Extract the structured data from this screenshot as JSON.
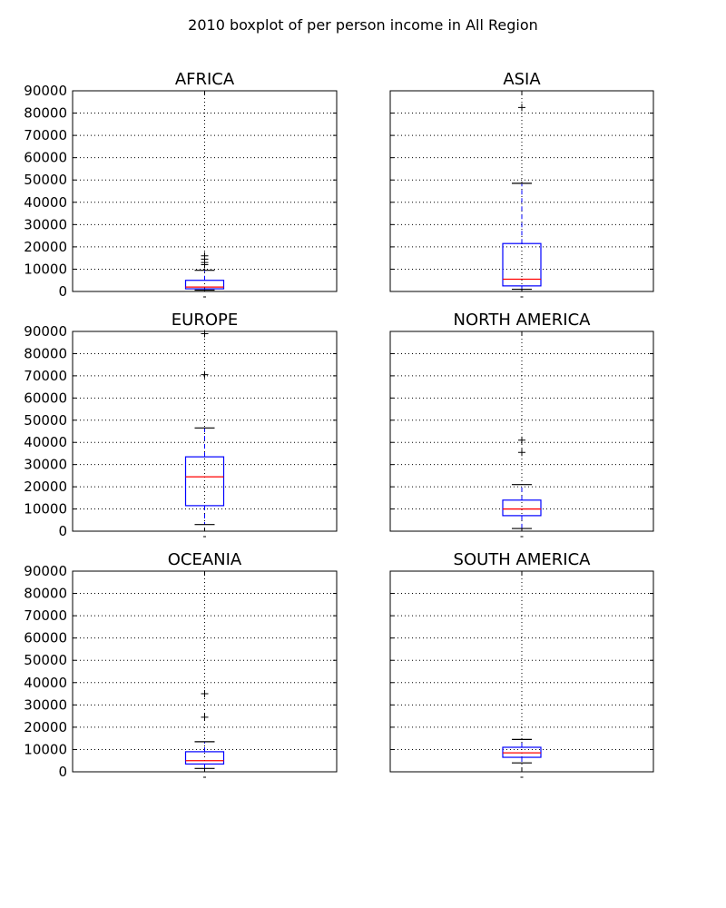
{
  "suptitle": "2010 boxplot of per person income in All Region",
  "colors": {
    "box": "#0000ff",
    "median": "#ff0000",
    "whisker_cap": "#000000",
    "flier": "#000000",
    "grid": "#000000"
  },
  "chart_data": [
    {
      "type": "boxplot",
      "title": "AFRICA",
      "ylim": [
        0,
        90000
      ],
      "yticks": [
        0,
        10000,
        20000,
        30000,
        40000,
        50000,
        60000,
        70000,
        80000,
        90000
      ],
      "grid": true,
      "box": {
        "whislo": 600,
        "q1": 1200,
        "median": 2000,
        "q3": 5000,
        "whishi": 9500,
        "fliers": [
          12000,
          13000,
          14500,
          16000
        ]
      }
    },
    {
      "type": "boxplot",
      "title": "ASIA",
      "ylim": [
        0,
        90000
      ],
      "yticks": [
        0,
        10000,
        20000,
        30000,
        40000,
        50000,
        60000,
        70000,
        80000,
        90000
      ],
      "grid": true,
      "box": {
        "whislo": 1000,
        "q1": 2500,
        "median": 5500,
        "q3": 21500,
        "whishi": 48500,
        "fliers": [
          82500
        ]
      }
    },
    {
      "type": "boxplot",
      "title": "EUROPE",
      "ylim": [
        0,
        90000
      ],
      "yticks": [
        0,
        10000,
        20000,
        30000,
        40000,
        50000,
        60000,
        70000,
        80000,
        90000
      ],
      "grid": true,
      "box": {
        "whislo": 3000,
        "q1": 11500,
        "median": 24500,
        "q3": 33500,
        "whishi": 46500,
        "fliers": [
          70500,
          89000
        ]
      }
    },
    {
      "type": "boxplot",
      "title": "NORTH AMERICA",
      "ylim": [
        0,
        90000
      ],
      "yticks": [
        0,
        10000,
        20000,
        30000,
        40000,
        50000,
        60000,
        70000,
        80000,
        90000
      ],
      "grid": true,
      "box": {
        "whislo": 1200,
        "q1": 7000,
        "median": 10000,
        "q3": 14000,
        "whishi": 21000,
        "fliers": [
          35500,
          41000
        ]
      }
    },
    {
      "type": "boxplot",
      "title": "OCEANIA",
      "ylim": [
        0,
        90000
      ],
      "yticks": [
        0,
        10000,
        20000,
        30000,
        40000,
        50000,
        60000,
        70000,
        80000,
        90000
      ],
      "grid": true,
      "box": {
        "whislo": 1500,
        "q1": 3500,
        "median": 5000,
        "q3": 9000,
        "whishi": 13500,
        "fliers": [
          24500,
          35000
        ]
      }
    },
    {
      "type": "boxplot",
      "title": "SOUTH AMERICA",
      "ylim": [
        0,
        90000
      ],
      "yticks": [
        0,
        10000,
        20000,
        30000,
        40000,
        50000,
        60000,
        70000,
        80000,
        90000
      ],
      "grid": true,
      "box": {
        "whislo": 4000,
        "q1": 6500,
        "median": 8500,
        "q3": 11000,
        "whishi": 14500,
        "fliers": []
      }
    }
  ]
}
